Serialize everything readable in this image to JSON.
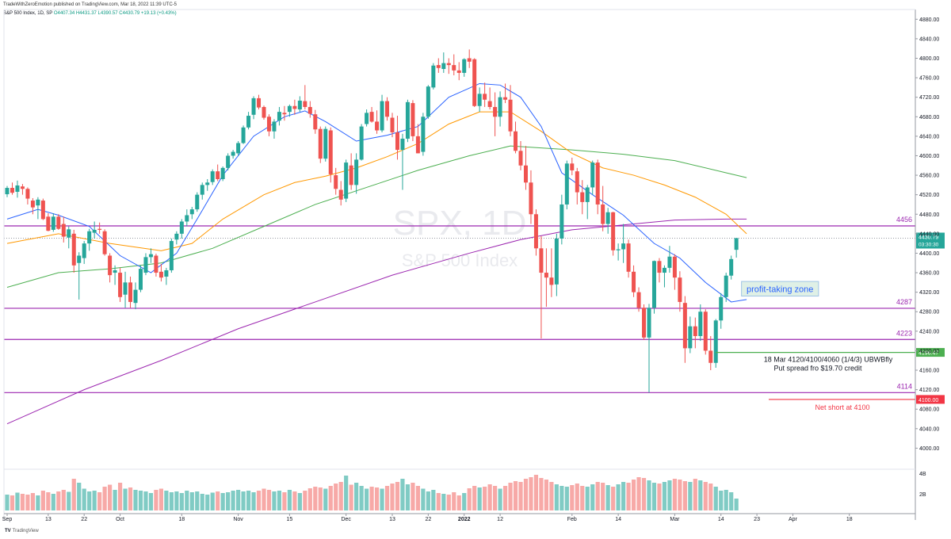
{
  "header": {
    "published_by": "TradeWithZeroEmotion published on TradingView.com, Mar 18, 2022 11:39 UTC-5",
    "symbol": "S&P 500 Index, 1D, SP",
    "ohlc": "O4407.34 H4431.37 L4390.57 C4430.79 +19.13 (+0.43%)"
  },
  "watermark": {
    "title": "SPX, 1D",
    "subtitle": "S&P 500 Index"
  },
  "footer": {
    "logo": "TradingView"
  },
  "colors": {
    "up": "#26a69a",
    "down": "#ef5350",
    "vol_up": "#80cbc4",
    "vol_down": "#f7a9a7",
    "sma20": "#2962ff",
    "sma50": "#ff9800",
    "sma100": "#4caf50",
    "sma200": "#9c27b0",
    "hline": "#9c27b0"
  },
  "chart_data": {
    "type": "candlestick",
    "ylim": [
      3960,
      4900
    ],
    "y_ticks": [
      4000,
      4040,
      4080,
      4120,
      4160,
      4200,
      4240,
      4280,
      4320,
      4360,
      4400,
      4440,
      4480,
      4520,
      4560,
      4600,
      4640,
      4680,
      4720,
      4760,
      4800,
      4840,
      4880
    ],
    "x_ticks": [
      {
        "label": "Sep",
        "day": 0
      },
      {
        "label": "13",
        "day": 8
      },
      {
        "label": "22",
        "day": 15
      },
      {
        "label": "Oct",
        "day": 22
      },
      {
        "label": "18",
        "day": 34
      },
      {
        "label": "Nov",
        "day": 45
      },
      {
        "label": "15",
        "day": 55
      },
      {
        "label": "Dec",
        "day": 66
      },
      {
        "label": "13",
        "day": 75
      },
      {
        "label": "22",
        "day": 82
      },
      {
        "label": "2022",
        "day": 89
      },
      {
        "label": "12",
        "day": 96
      },
      {
        "label": "Feb",
        "day": 110
      },
      {
        "label": "14",
        "day": 119
      },
      {
        "label": "Mar",
        "day": 130
      },
      {
        "label": "14",
        "day": 139
      },
      {
        "label": "23",
        "day": 146
      },
      {
        "label": "Apr",
        "day": 153
      },
      {
        "label": "18",
        "day": 164
      }
    ],
    "candles": [
      [
        4521,
        4538,
        4515,
        4534
      ],
      [
        4534,
        4545,
        4520,
        4524
      ],
      [
        4526,
        4549,
        4514,
        4539
      ],
      [
        4537,
        4542,
        4520,
        4532
      ],
      [
        4532,
        4535,
        4500,
        4512
      ],
      [
        4508,
        4513,
        4480,
        4494
      ],
      [
        4498,
        4515,
        4470,
        4510
      ],
      [
        4508,
        4512,
        4468,
        4470
      ],
      [
        4475,
        4482,
        4445,
        4446
      ],
      [
        4448,
        4482,
        4444,
        4475
      ],
      [
        4475,
        4480,
        4448,
        4450
      ],
      [
        4460,
        4475,
        4422,
        4434
      ],
      [
        4432,
        4455,
        4410,
        4449
      ],
      [
        4440,
        4448,
        4360,
        4375
      ],
      [
        4380,
        4402,
        4305,
        4395
      ],
      [
        4390,
        4425,
        4378,
        4420
      ],
      [
        4420,
        4450,
        4405,
        4445
      ],
      [
        4442,
        4465,
        4430,
        4448
      ],
      [
        4450,
        4463,
        4440,
        4448
      ],
      [
        4445,
        4449,
        4395,
        4398
      ],
      [
        4395,
        4400,
        4340,
        4355
      ],
      [
        4360,
        4375,
        4335,
        4365
      ],
      [
        4360,
        4370,
        4300,
        4310
      ],
      [
        4315,
        4362,
        4288,
        4340
      ],
      [
        4340,
        4352,
        4288,
        4300
      ],
      [
        4298,
        4340,
        4285,
        4325
      ],
      [
        4325,
        4375,
        4320,
        4368
      ],
      [
        4360,
        4400,
        4355,
        4392
      ],
      [
        4392,
        4410,
        4380,
        4398
      ],
      [
        4395,
        4399,
        4352,
        4360
      ],
      [
        4362,
        4378,
        4342,
        4350
      ],
      [
        4352,
        4370,
        4335,
        4365
      ],
      [
        4365,
        4430,
        4360,
        4425
      ],
      [
        4428,
        4445,
        4418,
        4440
      ],
      [
        4440,
        4470,
        4430,
        4465
      ],
      [
        4465,
        4490,
        4455,
        4478
      ],
      [
        4480,
        4495,
        4470,
        4490
      ],
      [
        4490,
        4525,
        4485,
        4520
      ],
      [
        4520,
        4545,
        4510,
        4540
      ],
      [
        4540,
        4552,
        4528,
        4545
      ],
      [
        4546,
        4572,
        4540,
        4568
      ],
      [
        4568,
        4582,
        4548,
        4552
      ],
      [
        4552,
        4578,
        4548,
        4575
      ],
      [
        4575,
        4605,
        4570,
        4600
      ],
      [
        4600,
        4612,
        4594,
        4608
      ],
      [
        4605,
        4630,
        4600,
        4626
      ],
      [
        4626,
        4662,
        4624,
        4658
      ],
      [
        4658,
        4690,
        4654,
        4682
      ],
      [
        4684,
        4722,
        4675,
        4718
      ],
      [
        4718,
        4725,
        4695,
        4699
      ],
      [
        4700,
        4703,
        4674,
        4678
      ],
      [
        4680,
        4685,
        4640,
        4650
      ],
      [
        4650,
        4675,
        4635,
        4670
      ],
      [
        4672,
        4700,
        4662,
        4690
      ],
      [
        4688,
        4702,
        4672,
        4685
      ],
      [
        4690,
        4705,
        4680,
        4702
      ],
      [
        4702,
        4715,
        4684,
        4696
      ],
      [
        4695,
        4722,
        4690,
        4713
      ],
      [
        4712,
        4745,
        4695,
        4700
      ],
      [
        4700,
        4712,
        4678,
        4686
      ],
      [
        4685,
        4694,
        4645,
        4654
      ],
      [
        4655,
        4660,
        4585,
        4594
      ],
      [
        4594,
        4660,
        4588,
        4655
      ],
      [
        4652,
        4658,
        4545,
        4562
      ],
      [
        4560,
        4575,
        4520,
        4532
      ],
      [
        4530,
        4548,
        4498,
        4510
      ],
      [
        4512,
        4592,
        4505,
        4586
      ],
      [
        4580,
        4605,
        4530,
        4540
      ],
      [
        4540,
        4605,
        4522,
        4592
      ],
      [
        4592,
        4665,
        4590,
        4660
      ],
      [
        4665,
        4695,
        4660,
        4688
      ],
      [
        4690,
        4700,
        4668,
        4670
      ],
      [
        4670,
        4693,
        4645,
        4652
      ],
      [
        4652,
        4725,
        4648,
        4712
      ],
      [
        4712,
        4720,
        4672,
        4680
      ],
      [
        4678,
        4688,
        4638,
        4648
      ],
      [
        4648,
        4682,
        4592,
        4612
      ],
      [
        4612,
        4645,
        4530,
        4635
      ],
      [
        4635,
        4715,
        4628,
        4710
      ],
      [
        4708,
        4714,
        4630,
        4640
      ],
      [
        4640,
        4665,
        4605,
        4605
      ],
      [
        4608,
        4688,
        4600,
        4680
      ],
      [
        4680,
        4745,
        4676,
        4742
      ],
      [
        4740,
        4790,
        4736,
        4785
      ],
      [
        4786,
        4800,
        4770,
        4780
      ],
      [
        4778,
        4812,
        4770,
        4790
      ],
      [
        4790,
        4800,
        4768,
        4786
      ],
      [
        4786,
        4808,
        4765,
        4775
      ],
      [
        4775,
        4792,
        4755,
        4770
      ],
      [
        4770,
        4800,
        4762,
        4798
      ],
      [
        4800,
        4818,
        4780,
        4793
      ],
      [
        4798,
        4800,
        4700,
        4702
      ],
      [
        4702,
        4740,
        4690,
        4727
      ],
      [
        4727,
        4750,
        4700,
        4715
      ],
      [
        4712,
        4740,
        4695,
        4700
      ],
      [
        4700,
        4730,
        4640,
        4680
      ],
      [
        4680,
        4732,
        4660,
        4720
      ],
      [
        4720,
        4748,
        4708,
        4715
      ],
      [
        4715,
        4745,
        4640,
        4650
      ],
      [
        4650,
        4670,
        4605,
        4610
      ],
      [
        4610,
        4630,
        4570,
        4580
      ],
      [
        4580,
        4620,
        4530,
        4545
      ],
      [
        4545,
        4570,
        4460,
        4480
      ],
      [
        4480,
        4490,
        4395,
        4410
      ],
      [
        4410,
        4435,
        4225,
        4360
      ],
      [
        4360,
        4410,
        4290,
        4350
      ],
      [
        4350,
        4410,
        4310,
        4335
      ],
      [
        4336,
        4440,
        4312,
        4430
      ],
      [
        4430,
        4520,
        4418,
        4500
      ],
      [
        4500,
        4590,
        4490,
        4584
      ],
      [
        4584,
        4596,
        4560,
        4570
      ],
      [
        4568,
        4575,
        4500,
        4525
      ],
      [
        4525,
        4550,
        4480,
        4505
      ],
      [
        4505,
        4540,
        4470,
        4535
      ],
      [
        4535,
        4590,
        4520,
        4586
      ],
      [
        4586,
        4592,
        4480,
        4500
      ],
      [
        4500,
        4538,
        4445,
        4460
      ],
      [
        4460,
        4493,
        4440,
        4484
      ],
      [
        4484,
        4485,
        4395,
        4406
      ],
      [
        4406,
        4420,
        4385,
        4408
      ],
      [
        4408,
        4460,
        4380,
        4420
      ],
      [
        4420,
        4428,
        4350,
        4362
      ],
      [
        4362,
        4375,
        4310,
        4320
      ],
      [
        4320,
        4330,
        4280,
        4288
      ],
      [
        4288,
        4295,
        4222,
        4227
      ],
      [
        4227,
        4296,
        4114,
        4288
      ],
      [
        4288,
        4385,
        4276,
        4384
      ],
      [
        4384,
        4390,
        4340,
        4360
      ],
      [
        4360,
        4375,
        4330,
        4370
      ],
      [
        4370,
        4415,
        4360,
        4393
      ],
      [
        4393,
        4398,
        4325,
        4350
      ],
      [
        4350,
        4363,
        4280,
        4300
      ],
      [
        4298,
        4312,
        4175,
        4205
      ],
      [
        4205,
        4270,
        4195,
        4250
      ],
      [
        4250,
        4268,
        4205,
        4230
      ],
      [
        4230,
        4295,
        4220,
        4280
      ],
      [
        4280,
        4285,
        4192,
        4200
      ],
      [
        4200,
        4230,
        4160,
        4175
      ],
      [
        4175,
        4265,
        4165,
        4262
      ],
      [
        4262,
        4318,
        4245,
        4310
      ],
      [
        4310,
        4360,
        4300,
        4354
      ],
      [
        4354,
        4395,
        4346,
        4388
      ],
      [
        4407,
        4431,
        4391,
        4431
      ]
    ],
    "ma": {
      "sma20": [
        [
          0,
          4470
        ],
        [
          6,
          4490
        ],
        [
          10,
          4478
        ],
        [
          16,
          4455
        ],
        [
          22,
          4395
        ],
        [
          28,
          4360
        ],
        [
          33,
          4400
        ],
        [
          37,
          4470
        ],
        [
          42,
          4560
        ],
        [
          48,
          4640
        ],
        [
          54,
          4680
        ],
        [
          58,
          4692
        ],
        [
          62,
          4670
        ],
        [
          68,
          4630
        ],
        [
          74,
          4642
        ],
        [
          80,
          4660
        ],
        [
          86,
          4720
        ],
        [
          92,
          4748
        ],
        [
          96,
          4745
        ],
        [
          100,
          4720
        ],
        [
          104,
          4660
        ],
        [
          108,
          4565
        ],
        [
          114,
          4520
        ],
        [
          120,
          4478
        ],
        [
          126,
          4420
        ],
        [
          131,
          4390
        ],
        [
          136,
          4340
        ],
        [
          141,
          4300
        ],
        [
          144,
          4305
        ]
      ],
      "sma50": [
        [
          0,
          4420
        ],
        [
          10,
          4440
        ],
        [
          20,
          4420
        ],
        [
          30,
          4405
        ],
        [
          36,
          4420
        ],
        [
          42,
          4470
        ],
        [
          50,
          4520
        ],
        [
          56,
          4545
        ],
        [
          62,
          4558
        ],
        [
          68,
          4575
        ],
        [
          74,
          4598
        ],
        [
          80,
          4625
        ],
        [
          86,
          4665
        ],
        [
          92,
          4690
        ],
        [
          98,
          4690
        ],
        [
          104,
          4650
        ],
        [
          110,
          4605
        ],
        [
          116,
          4575
        ],
        [
          122,
          4560
        ],
        [
          128,
          4540
        ],
        [
          134,
          4515
        ],
        [
          140,
          4480
        ],
        [
          144,
          4440
        ]
      ],
      "sma100": [
        [
          0,
          4330
        ],
        [
          10,
          4360
        ],
        [
          20,
          4368
        ],
        [
          30,
          4380
        ],
        [
          40,
          4410
        ],
        [
          50,
          4455
        ],
        [
          60,
          4500
        ],
        [
          70,
          4535
        ],
        [
          80,
          4570
        ],
        [
          90,
          4600
        ],
        [
          98,
          4620
        ],
        [
          104,
          4616
        ],
        [
          110,
          4612
        ],
        [
          120,
          4603
        ],
        [
          130,
          4590
        ],
        [
          140,
          4565
        ],
        [
          144,
          4555
        ]
      ],
      "sma200": [
        [
          0,
          4050
        ],
        [
          15,
          4120
        ],
        [
          30,
          4180
        ],
        [
          45,
          4245
        ],
        [
          60,
          4300
        ],
        [
          75,
          4355
        ],
        [
          90,
          4400
        ],
        [
          100,
          4428
        ],
        [
          110,
          4448
        ],
        [
          120,
          4458
        ],
        [
          130,
          4468
        ],
        [
          140,
          4470
        ],
        [
          144,
          4470
        ]
      ],
      "sma200_dotted_level": 4431
    },
    "volume": [
      0.4,
      0.38,
      0.45,
      0.42,
      0.4,
      0.44,
      0.38,
      0.5,
      0.46,
      0.42,
      0.48,
      0.52,
      0.47,
      0.8,
      0.7,
      0.55,
      0.48,
      0.5,
      0.46,
      0.6,
      0.65,
      0.52,
      0.7,
      0.55,
      0.58,
      0.52,
      0.5,
      0.48,
      0.44,
      0.52,
      0.55,
      0.5,
      0.46,
      0.48,
      0.44,
      0.5,
      0.46,
      0.48,
      0.42,
      0.4,
      0.45,
      0.48,
      0.44,
      0.46,
      0.5,
      0.52,
      0.48,
      0.5,
      0.46,
      0.5,
      0.55,
      0.52,
      0.48,
      0.5,
      0.46,
      0.52,
      0.48,
      0.44,
      0.5,
      0.56,
      0.6,
      0.58,
      0.55,
      0.62,
      0.68,
      0.72,
      0.88,
      0.65,
      0.7,
      0.62,
      0.55,
      0.6,
      0.58,
      0.55,
      0.62,
      0.68,
      0.72,
      0.8,
      0.66,
      0.7,
      0.62,
      0.55,
      0.48,
      0.52,
      0.44,
      0.42,
      0.4,
      0.46,
      0.38,
      0.44,
      0.56,
      0.62,
      0.58,
      0.6,
      0.66,
      0.62,
      0.55,
      0.62,
      0.7,
      0.74,
      0.72,
      0.8,
      0.84,
      0.9,
      0.82,
      0.78,
      0.72,
      0.66,
      0.62,
      0.6,
      0.64,
      0.68,
      0.62,
      0.6,
      0.66,
      0.72,
      0.7,
      0.64,
      0.6,
      0.66,
      0.72,
      0.7,
      0.78,
      0.84,
      0.82,
      0.76,
      0.7,
      0.68,
      0.72,
      0.76,
      0.8,
      0.78,
      0.74,
      0.72,
      0.8,
      0.76,
      0.72,
      0.68,
      0.6,
      0.5,
      0.52,
      0.46,
      0.3
    ],
    "volume_scale_labels": [
      "4B",
      "2B"
    ],
    "levels": [
      {
        "price": 4456,
        "label": "4456",
        "color": "#9c27b0"
      },
      {
        "price": 4287,
        "label": "4287",
        "color": "#9c27b0"
      },
      {
        "price": 4223,
        "label": "4223",
        "color": "#9c27b0"
      },
      {
        "price": 4114,
        "label": "4114",
        "color": "#9c27b0"
      }
    ],
    "annotations": {
      "profit_zone": {
        "label": "profit-taking zone",
        "price_top": 4342,
        "price_bottom": 4312,
        "day_start": 143,
        "day_end": 158
      },
      "trade_note_line1": "18 Mar 4120/4100/4060 (1/4/3) UBWBfly",
      "trade_note_line2": "Put spread fro $19.70 credit",
      "green_level": {
        "price": 4196.47,
        "label": "4196.47"
      },
      "red_level": {
        "price": 4100,
        "label": "4100.00",
        "note": "Net short at 4100"
      },
      "last_price": {
        "price": 4430.79,
        "label": "4430.79",
        "countdown": "03:30:30"
      }
    }
  }
}
